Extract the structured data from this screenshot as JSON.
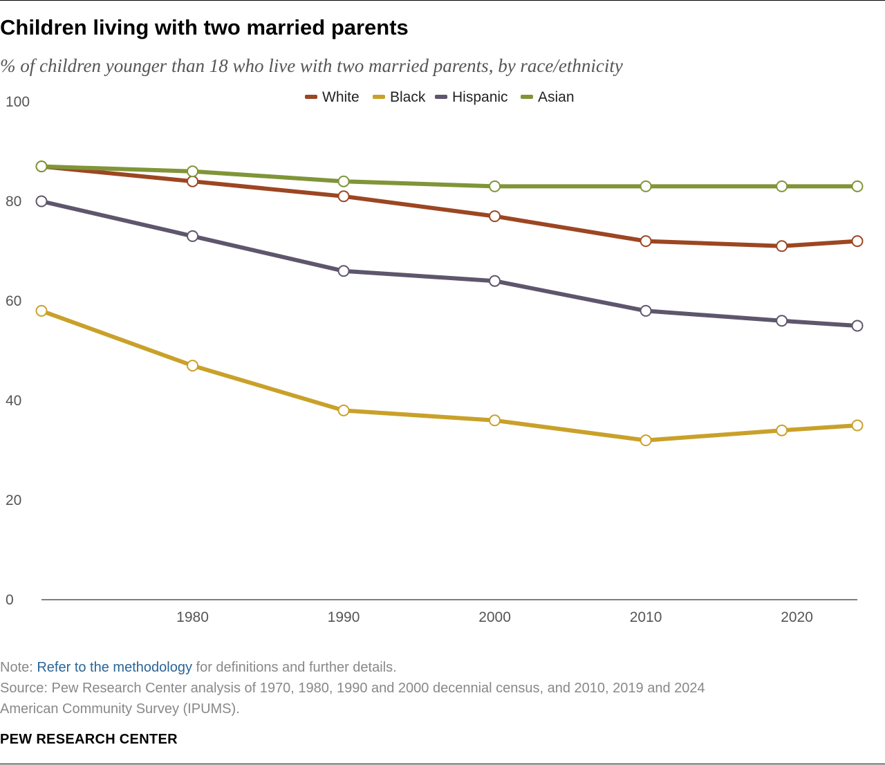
{
  "title": "Children living with two married parents",
  "subtitle": "% of children younger than 18 who live with two married parents, by race/ethnicity",
  "footer": {
    "note_prefix": "Note: ",
    "note_link": "Refer to the methodology",
    "note_suffix": " for definitions and further details.",
    "source_line1": "Source: Pew Research Center analysis of 1970, 1980, 1990 and 2000 decennial census, and 2010, 2019 and 2024",
    "source_line2": "American Community Survey (IPUMS).",
    "brand": "PEW RESEARCH CENTER"
  },
  "colors": {
    "white": "#9c4622",
    "black": "#c9a12a",
    "hispanic": "#5e566c",
    "asian": "#7f9538",
    "axis": "#555555"
  },
  "chart_data": {
    "type": "line",
    "title": "Children living with two married parents",
    "xlabel": "",
    "ylabel": "",
    "x": [
      1970,
      1980,
      1990,
      2000,
      2010,
      2019,
      2024
    ],
    "xlim": [
      1970,
      2024
    ],
    "ylim": [
      0,
      100
    ],
    "x_ticks": [
      1980,
      1990,
      2000,
      2010,
      2020
    ],
    "y_ticks": [
      0,
      20,
      40,
      60,
      80,
      100
    ],
    "grid": false,
    "legend_position": "top-center",
    "series": [
      {
        "key": "white",
        "name": "White",
        "color": "#9c4622",
        "values": [
          87,
          84,
          81,
          77,
          72,
          71,
          72
        ]
      },
      {
        "key": "black",
        "name": "Black",
        "color": "#c9a12a",
        "values": [
          58,
          47,
          38,
          36,
          32,
          34,
          35
        ]
      },
      {
        "key": "hispanic",
        "name": "Hispanic",
        "color": "#5e566c",
        "values": [
          80,
          73,
          66,
          64,
          58,
          56,
          55
        ]
      },
      {
        "key": "asian",
        "name": "Asian",
        "color": "#7f9538",
        "values": [
          87,
          86,
          84,
          83,
          83,
          83,
          83
        ]
      }
    ]
  }
}
